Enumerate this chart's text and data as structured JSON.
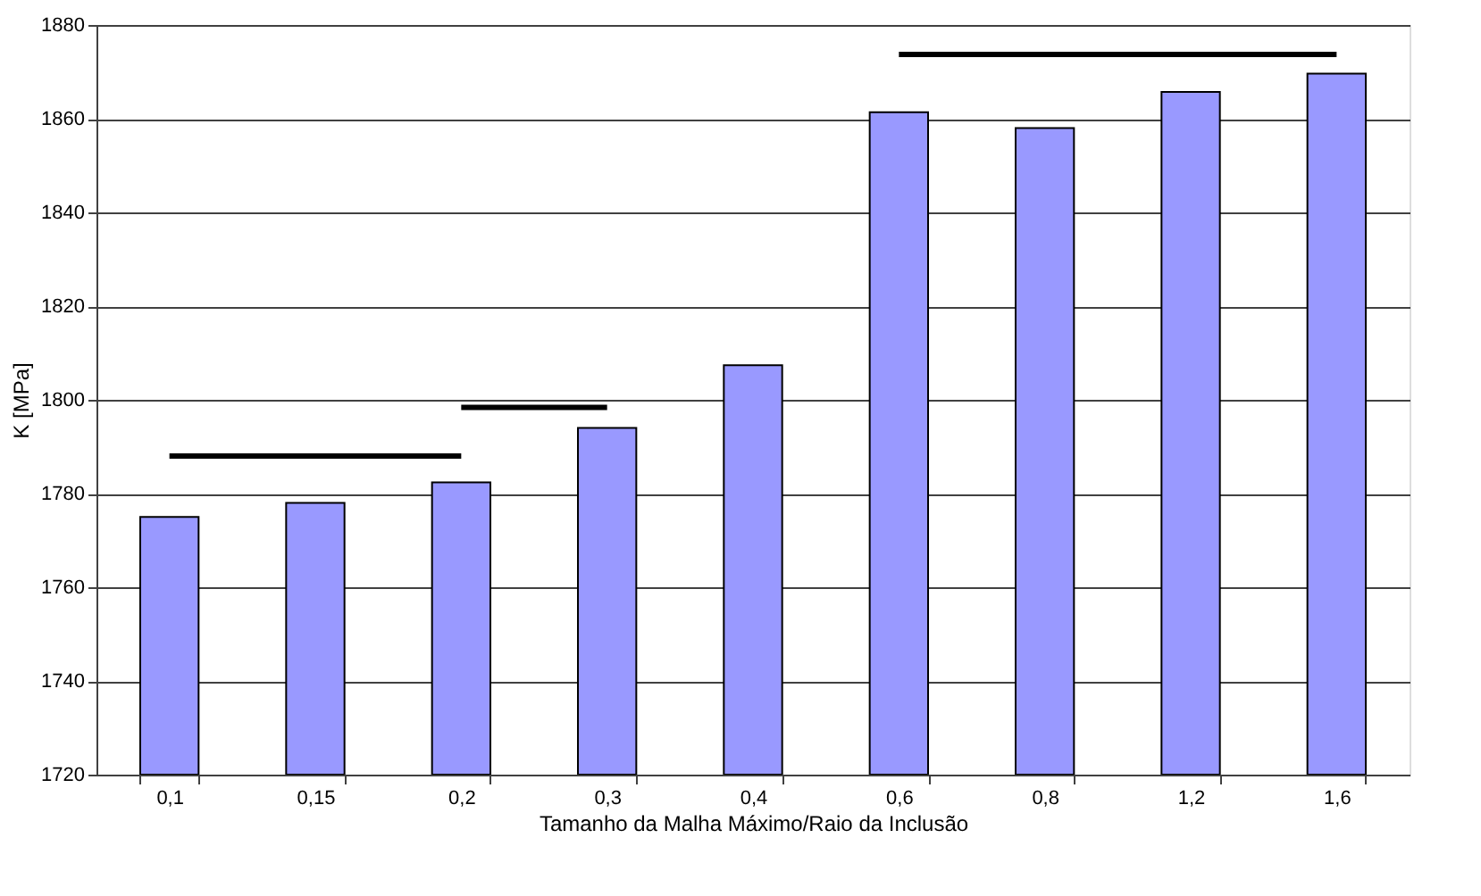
{
  "chart_data": {
    "type": "bar",
    "xlabel": "Tamanho da Malha Máximo/Raio da Inclusão",
    "ylabel": "K [MPa]",
    "categories": [
      "0,1",
      "0,15",
      "0,2",
      "0,3",
      "0,4",
      "0,6",
      "0,8",
      "1,2",
      "1,6"
    ],
    "series": [
      {
        "color": "#9999ff",
        "values": [
          1775,
          1778,
          1782.4,
          1794,
          1807.4,
          1861.4,
          1858,
          1865.7,
          1869.6
        ]
      },
      {
        "type": "line",
        "color": "#000000",
        "values": [
          1788,
          1788,
          1788,
          null,
          null,
          null,
          null,
          null,
          null
        ]
      },
      {
        "type": "line",
        "color": "#000000",
        "values": [
          null,
          null,
          1798.4,
          1798.4,
          null,
          null,
          null,
          null,
          null
        ]
      },
      {
        "type": "line",
        "color": "#000000",
        "values": [
          null,
          null,
          null,
          null,
          null,
          1873.7,
          1873.7,
          1873.7,
          1873.7
        ]
      }
    ],
    "ylim": [
      1720,
      1880
    ],
    "yticks": [
      1720,
      1740,
      1760,
      1780,
      1800,
      1820,
      1840,
      1860,
      1880
    ],
    "grid": "y"
  }
}
